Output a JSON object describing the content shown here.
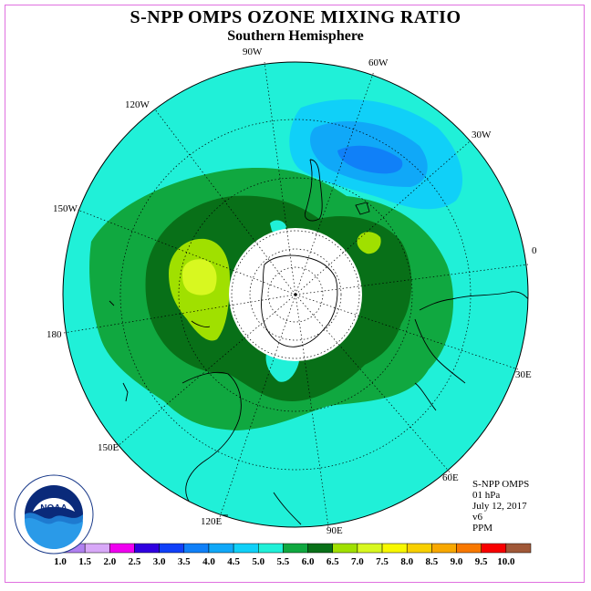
{
  "title": "S-NPP OMPS OZONE MIXING RATIO",
  "subtitle": "Southern Hemisphere",
  "longitude_labels": [
    "90W",
    "60W",
    "30W",
    "0",
    "30E",
    "60E",
    "90E",
    "120E",
    "150E",
    "180",
    "150W",
    "120W"
  ],
  "info": {
    "instrument": "S-NPP OMPS",
    "level": "01 hPa",
    "date": "July 12, 2017",
    "version": "v6",
    "units": "PPM"
  },
  "logo_text": "NOAA",
  "colorbar": {
    "ticks": [
      "1.0",
      "1.5",
      "2.0",
      "2.5",
      "3.0",
      "3.5",
      "4.0",
      "4.5",
      "5.0",
      "5.5",
      "6.0",
      "6.5",
      "7.0",
      "7.5",
      "8.0",
      "8.5",
      "9.0",
      "9.5",
      "10.0"
    ],
    "colors": [
      "#b080f0",
      "#d8a8f8",
      "#f000f0",
      "#3000e0",
      "#1040f8",
      "#1080f8",
      "#10a8f8",
      "#10d0f8",
      "#20f0d8",
      "#10a840",
      "#087018",
      "#a0e000",
      "#d8f820",
      "#f8f800",
      "#f8d000",
      "#f8a800",
      "#f87800",
      "#f80000",
      "#a05838"
    ]
  }
}
